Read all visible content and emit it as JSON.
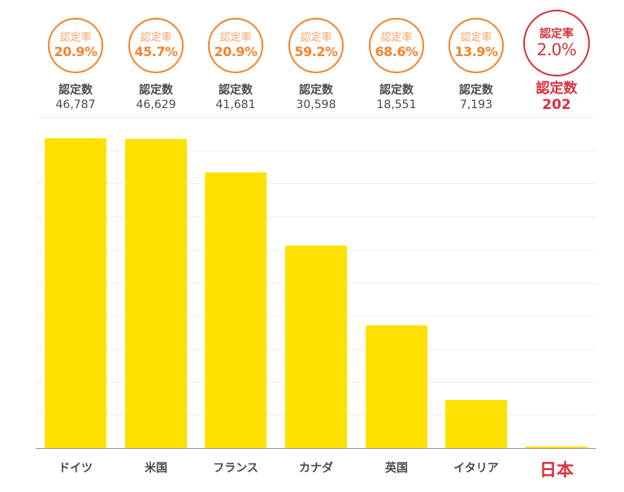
{
  "chart_data": {
    "type": "bar",
    "title": "",
    "xlabel": "",
    "ylabel": "",
    "ylim": [
      0,
      50000
    ],
    "grid": true,
    "gridline_step": 5000,
    "categories": [
      "ドイツ",
      "米国",
      "フランス",
      "カナダ",
      "英国",
      "イタリア",
      "日本"
    ],
    "series": [
      {
        "name": "認定数",
        "values": [
          46787,
          46629,
          41681,
          30598,
          18551,
          7193,
          202
        ]
      }
    ],
    "annotations": {
      "rate_label": "認定率",
      "count_label": "認定数",
      "rates": [
        "20.9%",
        "45.7%",
        "20.9%",
        "59.2%",
        "68.6%",
        "13.9%",
        "2.0%"
      ],
      "counts_display": [
        "46,787",
        "46,629",
        "41,681",
        "30,598",
        "18,551",
        "7,193",
        "202"
      ],
      "highlighted_category": "日本"
    }
  },
  "colors": {
    "bar": "#FFE100",
    "rate_circle": "#F5832C",
    "highlight": "#D7313E",
    "text": "#4a4a4a",
    "gridline": "#efefef",
    "axis": "#999999"
  },
  "columns": [
    {
      "country": "ドイツ",
      "rate_label": "認定率",
      "rate": "20.9%",
      "count_label": "認定数",
      "count": "46,787",
      "value": 46787,
      "highlight": false
    },
    {
      "country": "米国",
      "rate_label": "認定率",
      "rate": "45.7%",
      "count_label": "認定数",
      "count": "46,629",
      "value": 46629,
      "highlight": false
    },
    {
      "country": "フランス",
      "rate_label": "認定率",
      "rate": "20.9%",
      "count_label": "認定数",
      "count": "41,681",
      "value": 41681,
      "highlight": false
    },
    {
      "country": "カナダ",
      "rate_label": "認定率",
      "rate": "59.2%",
      "count_label": "認定数",
      "count": "30,598",
      "value": 30598,
      "highlight": false
    },
    {
      "country": "英国",
      "rate_label": "認定率",
      "rate": "68.6%",
      "count_label": "認定数",
      "count": "18,551",
      "value": 18551,
      "highlight": false
    },
    {
      "country": "イタリア",
      "rate_label": "認定率",
      "rate": "13.9%",
      "count_label": "認定数",
      "count": "7,193",
      "value": 7193,
      "highlight": false
    },
    {
      "country": "日本",
      "rate_label": "認定率",
      "rate": "2.0%",
      "count_label": "認定数",
      "count": "202",
      "value": 202,
      "highlight": true
    }
  ]
}
